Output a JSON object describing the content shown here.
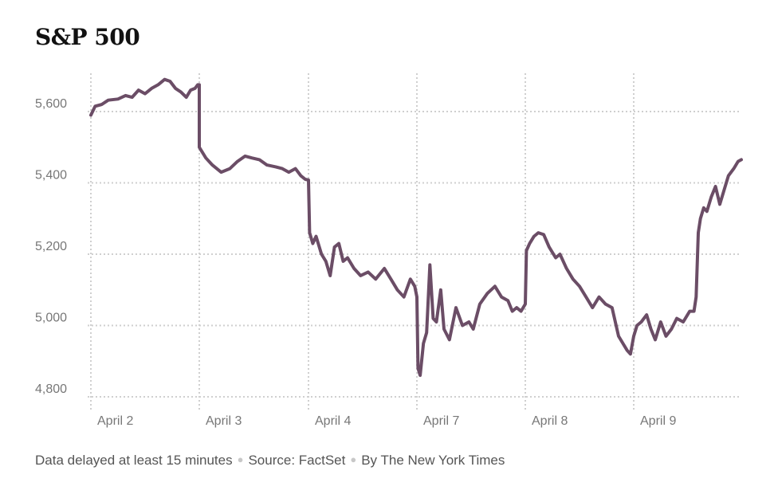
{
  "chart_data": {
    "type": "line",
    "title": "S&P 500",
    "xlabel": "",
    "ylabel": "",
    "ylim": [
      4780,
      5700
    ],
    "yticks": [
      {
        "value": 5600,
        "label": "5,600"
      },
      {
        "value": 5400,
        "label": "5,400"
      },
      {
        "value": 5200,
        "label": "5,200"
      },
      {
        "value": 5000,
        "label": "5,000"
      },
      {
        "value": 4800,
        "label": "4,800"
      }
    ],
    "categories": [
      "April 2",
      "April 3",
      "April 4",
      "April 7",
      "April 8",
      "April 9"
    ],
    "grid": true,
    "line_color": "#6b4d66",
    "series": [
      {
        "values": [
          [
            0.0,
            5590
          ],
          [
            0.04,
            5615
          ],
          [
            0.1,
            5620
          ],
          [
            0.16,
            5632
          ],
          [
            0.25,
            5635
          ],
          [
            0.32,
            5645
          ],
          [
            0.38,
            5640
          ],
          [
            0.44,
            5660
          ],
          [
            0.5,
            5650
          ],
          [
            0.56,
            5665
          ],
          [
            0.62,
            5675
          ],
          [
            0.68,
            5690
          ],
          [
            0.73,
            5685
          ],
          [
            0.78,
            5665
          ],
          [
            0.83,
            5655
          ],
          [
            0.88,
            5640
          ],
          [
            0.92,
            5660
          ],
          [
            0.96,
            5665
          ],
          [
            0.985,
            5675
          ],
          [
            1.0,
            5675
          ],
          [
            1.0,
            5500
          ],
          [
            1.06,
            5470
          ],
          [
            1.12,
            5450
          ],
          [
            1.2,
            5430
          ],
          [
            1.28,
            5440
          ],
          [
            1.35,
            5460
          ],
          [
            1.42,
            5475
          ],
          [
            1.48,
            5470
          ],
          [
            1.55,
            5465
          ],
          [
            1.62,
            5450
          ],
          [
            1.7,
            5445
          ],
          [
            1.76,
            5440
          ],
          [
            1.82,
            5430
          ],
          [
            1.88,
            5440
          ],
          [
            1.93,
            5420
          ],
          [
            1.97,
            5410
          ],
          [
            2.0,
            5408
          ],
          [
            2.01,
            5260
          ],
          [
            2.04,
            5230
          ],
          [
            2.07,
            5250
          ],
          [
            2.12,
            5200
          ],
          [
            2.16,
            5180
          ],
          [
            2.2,
            5140
          ],
          [
            2.24,
            5220
          ],
          [
            2.28,
            5230
          ],
          [
            2.32,
            5180
          ],
          [
            2.36,
            5190
          ],
          [
            2.42,
            5160
          ],
          [
            2.48,
            5140
          ],
          [
            2.55,
            5150
          ],
          [
            2.62,
            5130
          ],
          [
            2.7,
            5160
          ],
          [
            2.76,
            5130
          ],
          [
            2.82,
            5100
          ],
          [
            2.88,
            5080
          ],
          [
            2.94,
            5130
          ],
          [
            2.98,
            5110
          ],
          [
            3.0,
            5080
          ],
          [
            3.01,
            4880
          ],
          [
            3.03,
            4860
          ],
          [
            3.06,
            4950
          ],
          [
            3.09,
            4980
          ],
          [
            3.12,
            5170
          ],
          [
            3.15,
            5020
          ],
          [
            3.18,
            5010
          ],
          [
            3.22,
            5100
          ],
          [
            3.25,
            4990
          ],
          [
            3.3,
            4960
          ],
          [
            3.36,
            5050
          ],
          [
            3.42,
            5000
          ],
          [
            3.48,
            5010
          ],
          [
            3.52,
            4990
          ],
          [
            3.58,
            5060
          ],
          [
            3.65,
            5090
          ],
          [
            3.72,
            5110
          ],
          [
            3.78,
            5080
          ],
          [
            3.84,
            5070
          ],
          [
            3.88,
            5040
          ],
          [
            3.92,
            5050
          ],
          [
            3.96,
            5040
          ],
          [
            4.0,
            5060
          ],
          [
            4.01,
            5210
          ],
          [
            4.04,
            5230
          ],
          [
            4.08,
            5250
          ],
          [
            4.12,
            5260
          ],
          [
            4.17,
            5255
          ],
          [
            4.22,
            5220
          ],
          [
            4.28,
            5190
          ],
          [
            4.32,
            5200
          ],
          [
            4.38,
            5160
          ],
          [
            4.44,
            5130
          ],
          [
            4.5,
            5110
          ],
          [
            4.56,
            5080
          ],
          [
            4.62,
            5050
          ],
          [
            4.68,
            5080
          ],
          [
            4.74,
            5060
          ],
          [
            4.8,
            5050
          ],
          [
            4.86,
            4970
          ],
          [
            4.9,
            4950
          ],
          [
            4.94,
            4930
          ],
          [
            4.97,
            4920
          ],
          [
            5.0,
            4970
          ],
          [
            5.03,
            5000
          ],
          [
            5.07,
            5010
          ],
          [
            5.12,
            5030
          ],
          [
            5.16,
            4990
          ],
          [
            5.2,
            4960
          ],
          [
            5.25,
            5010
          ],
          [
            5.3,
            4970
          ],
          [
            5.35,
            4990
          ],
          [
            5.4,
            5020
          ],
          [
            5.46,
            5010
          ],
          [
            5.52,
            5040
          ],
          [
            5.56,
            5040
          ],
          [
            5.58,
            5080
          ],
          [
            5.6,
            5260
          ],
          [
            5.62,
            5300
          ],
          [
            5.65,
            5330
          ],
          [
            5.68,
            5320
          ],
          [
            5.72,
            5360
          ],
          [
            5.76,
            5390
          ],
          [
            5.8,
            5340
          ],
          [
            5.84,
            5380
          ],
          [
            5.88,
            5420
          ],
          [
            5.93,
            5440
          ],
          [
            5.97,
            5460
          ],
          [
            6.0,
            5465
          ]
        ]
      }
    ]
  },
  "footer": {
    "delay_text": "Data delayed at least 15 minutes",
    "source_text": "Source: FactSet",
    "byline_text": "By The New York Times"
  }
}
